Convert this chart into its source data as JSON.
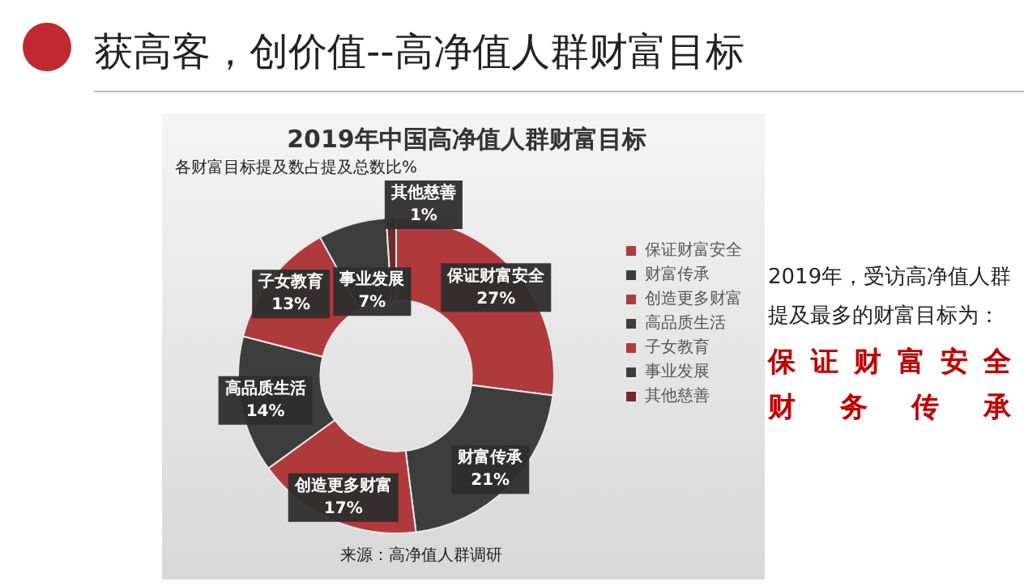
{
  "chart_data": {
    "type": "donut",
    "title": "2019年中国高净值人群财富目标",
    "subtitle": "各财富目标提及数占提及总数比%",
    "categories": [
      "保证财富安全",
      "财富传承",
      "创造更多财富",
      "高品质生活",
      "子女教育",
      "事业发展",
      "其他慈善"
    ],
    "values": [
      27,
      21,
      17,
      14,
      13,
      7,
      1
    ],
    "colors": [
      "#b0393c",
      "#3d3d3d",
      "#b0393c",
      "#3d3d3d",
      "#b0393c",
      "#3d3d3d",
      "#6e2a2c"
    ],
    "value_labels": [
      "27%",
      "21%",
      "17%",
      "14%",
      "13%",
      "7%",
      "1%"
    ],
    "legend": "right",
    "annotations": [
      "获高客，创价值--高净值人群财富目标",
      "来源：高净值人群调研",
      "2019年，受访高净值人群提及最多的财富目标为：",
      "保证财富安全",
      "财务传承"
    ]
  }
}
